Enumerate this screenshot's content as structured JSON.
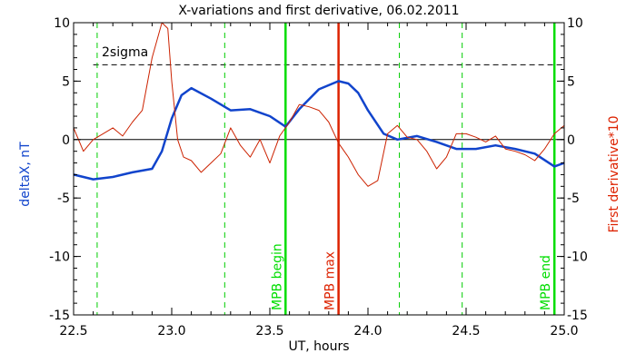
{
  "chart_data": {
    "type": "line",
    "title": "X-variations and first derivative, 06.02.2011",
    "xlabel": "UT, hours",
    "ylabel_left": "deltaX, nT",
    "ylabel_right": "First derivative*10",
    "xlim": [
      22.5,
      25.0
    ],
    "ylim": [
      -15,
      10
    ],
    "x_ticks": [
      {
        "value": 22.5,
        "label": "22.5"
      },
      {
        "value": 23.0,
        "label": "23.0"
      },
      {
        "value": 23.5,
        "label": "23.5"
      },
      {
        "value": 24.0,
        "label": "24.0"
      },
      {
        "value": 24.5,
        "label": "24.5"
      },
      {
        "value": 25.0,
        "label": "25.0"
      }
    ],
    "y_ticks": [
      {
        "value": 10,
        "label": "10"
      },
      {
        "value": 5,
        "label": "5"
      },
      {
        "value": 0,
        "label": "0"
      },
      {
        "value": -5,
        "label": "-5"
      },
      {
        "value": -10,
        "label": "-10"
      },
      {
        "value": -15,
        "label": "-15"
      }
    ],
    "sigma_level": 6.4,
    "sigma_label": "2sigma",
    "dashed_verticals": [
      22.62,
      23.27,
      24.16,
      24.48
    ],
    "markers": [
      {
        "x": 23.58,
        "label": "MPB begin",
        "color": "#00dd00"
      },
      {
        "x": 23.85,
        "label": "MPB max",
        "color": "#dd2200"
      },
      {
        "x": 24.95,
        "label": "MPB end",
        "color": "#00dd00"
      }
    ],
    "series": [
      {
        "color": "#1144cc",
        "x": [
          22.5,
          22.6,
          22.7,
          22.8,
          22.9,
          22.95,
          23.0,
          23.05,
          23.1,
          23.2,
          23.3,
          23.4,
          23.5,
          23.58,
          23.65,
          23.75,
          23.85,
          23.9,
          23.95,
          24.0,
          24.08,
          24.15,
          24.25,
          24.35,
          24.45,
          24.55,
          24.65,
          24.75,
          24.85,
          24.95,
          25.0
        ],
        "values": [
          -3.0,
          -3.4,
          -3.2,
          -2.8,
          -2.5,
          -1.0,
          1.8,
          3.8,
          4.4,
          3.5,
          2.5,
          2.6,
          2.0,
          1.1,
          2.6,
          4.3,
          5.0,
          4.8,
          4.0,
          2.5,
          0.5,
          0.0,
          0.3,
          -0.2,
          -0.8,
          -0.8,
          -0.5,
          -0.8,
          -1.2,
          -2.3,
          -2.0
        ]
      },
      {
        "color": "#cc2200",
        "x": [
          22.5,
          22.55,
          22.6,
          22.65,
          22.7,
          22.75,
          22.8,
          22.85,
          22.9,
          22.95,
          22.98,
          23.0,
          23.03,
          23.06,
          23.1,
          23.15,
          23.2,
          23.25,
          23.3,
          23.35,
          23.4,
          23.45,
          23.5,
          23.55,
          23.6,
          23.65,
          23.7,
          23.75,
          23.8,
          23.85,
          23.9,
          23.95,
          24.0,
          24.05,
          24.1,
          24.15,
          24.2,
          24.25,
          24.3,
          24.35,
          24.4,
          24.45,
          24.5,
          24.55,
          24.6,
          24.65,
          24.7,
          24.75,
          24.8,
          24.85,
          24.9,
          24.95,
          25.0
        ],
        "values": [
          1.0,
          -1.0,
          0.0,
          0.5,
          1.0,
          0.3,
          1.5,
          2.5,
          7.0,
          10.0,
          9.5,
          5.0,
          0.0,
          -1.5,
          -1.8,
          -2.8,
          -2.0,
          -1.2,
          1.0,
          -0.5,
          -1.5,
          0.0,
          -2.0,
          0.3,
          1.5,
          3.0,
          2.8,
          2.5,
          1.5,
          -0.3,
          -1.5,
          -3.0,
          -4.0,
          -3.5,
          0.5,
          1.2,
          0.2,
          0.0,
          -1.0,
          -2.5,
          -1.5,
          0.5,
          0.5,
          0.2,
          -0.2,
          0.3,
          -0.8,
          -1.0,
          -1.3,
          -1.8,
          -0.8,
          0.5,
          1.2
        ]
      }
    ]
  }
}
